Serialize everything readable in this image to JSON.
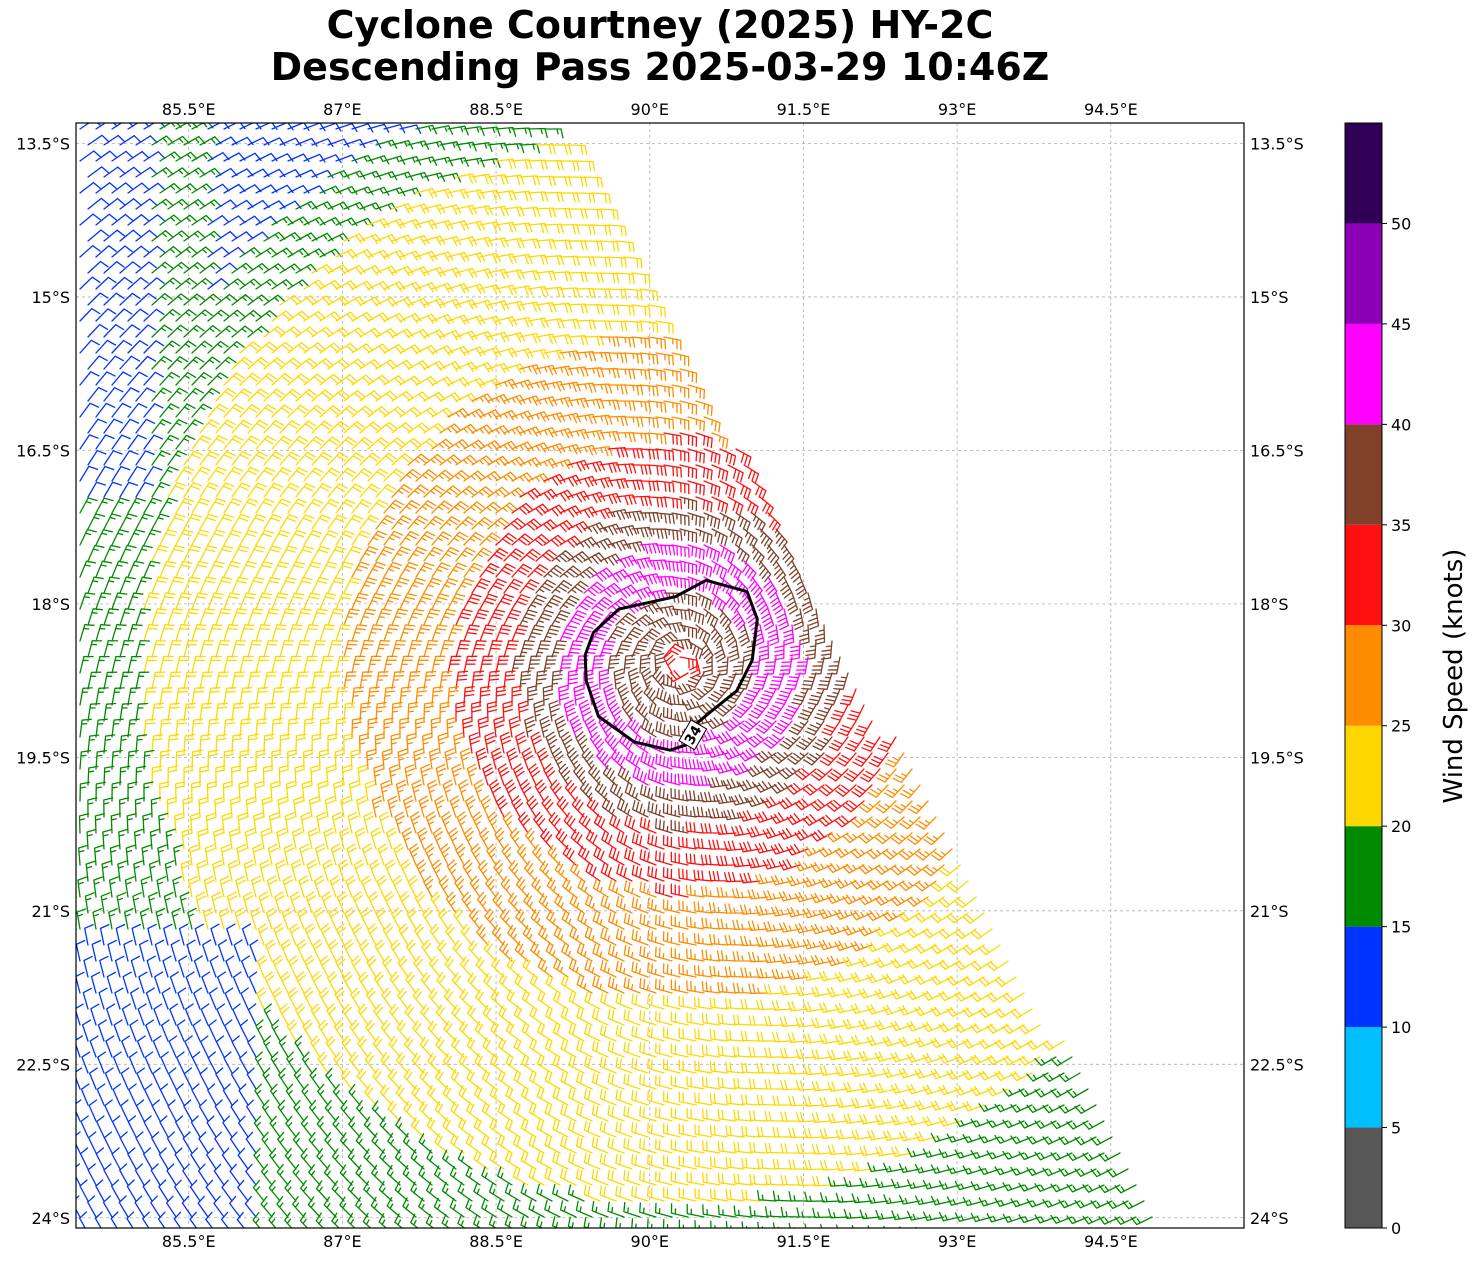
{
  "title": {
    "line1": "Cyclone Courtney (2025) HY-2C",
    "line2": "Descending Pass 2025-03-29 10:46Z"
  },
  "chart_data": {
    "type": "wind-barb-map",
    "lon_range": [
      84.4,
      95.8
    ],
    "lat_range": [
      -24.1,
      -13.3
    ],
    "lon_ticks": [
      85.5,
      87,
      88.5,
      90,
      91.5,
      93,
      94.5
    ],
    "lon_tick_labels": [
      "85.5°E",
      "87°E",
      "88.5°E",
      "90°E",
      "91.5°E",
      "93°E",
      "94.5°E"
    ],
    "lat_ticks": [
      -13.5,
      -15,
      -16.5,
      -18,
      -19.5,
      -21,
      -22.5,
      -24
    ],
    "lat_tick_labels": [
      "13.5°S",
      "15°S",
      "16.5°S",
      "18°S",
      "19.5°S",
      "21°S",
      "22.5°S",
      "24°S"
    ],
    "grid": true,
    "cyclone_center": {
      "lon": 90.3,
      "lat": -18.6
    },
    "swath_edge": {
      "lon_at_top": 89.2,
      "lat_at_top": -13.5,
      "lon_at_bottom": 95.0,
      "lat_at_bottom": -24.0
    },
    "contour_34kt": {
      "label": "34",
      "points": [
        [
          89.45,
          -18.28
        ],
        [
          89.7,
          -18.05
        ],
        [
          90.25,
          -17.93
        ],
        [
          90.55,
          -17.77
        ],
        [
          90.95,
          -17.88
        ],
        [
          91.05,
          -18.15
        ],
        [
          91.0,
          -18.55
        ],
        [
          90.85,
          -18.85
        ],
        [
          90.6,
          -19.05
        ],
        [
          90.42,
          -19.2
        ],
        [
          90.35,
          -19.38
        ],
        [
          90.2,
          -19.43
        ],
        [
          89.85,
          -19.35
        ],
        [
          89.5,
          -19.1
        ],
        [
          89.38,
          -18.75
        ],
        [
          89.37,
          -18.5
        ]
      ]
    },
    "colorbar": {
      "label": "Wind Speed (knots)",
      "bins": [
        {
          "min": 0,
          "max": 5,
          "color": "#575757"
        },
        {
          "min": 5,
          "max": 10,
          "color": "#00bfff"
        },
        {
          "min": 10,
          "max": 15,
          "color": "#0033ff"
        },
        {
          "min": 15,
          "max": 20,
          "color": "#008a00"
        },
        {
          "min": 20,
          "max": 25,
          "color": "#ffd700"
        },
        {
          "min": 25,
          "max": 30,
          "color": "#ff8c00"
        },
        {
          "min": 30,
          "max": 35,
          "color": "#ff0f0f"
        },
        {
          "min": 35,
          "max": 40,
          "color": "#80402a"
        },
        {
          "min": 40,
          "max": 45,
          "color": "#ff00ff"
        },
        {
          "min": 45,
          "max": 50,
          "color": "#8b00b5"
        },
        {
          "min": 50,
          "max": 55,
          "color": "#2f0055"
        }
      ],
      "tick_labels": [
        "0",
        "5",
        "10",
        "15",
        "20",
        "25",
        "30",
        "35",
        "40",
        "45",
        "50"
      ]
    }
  }
}
